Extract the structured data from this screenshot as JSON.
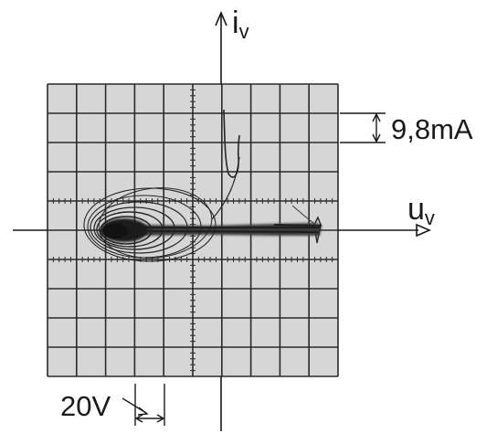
{
  "axes": {
    "y_label_main": "i",
    "y_label_sub": "v",
    "x_label_main": "u",
    "x_label_sub": "v"
  },
  "scale": {
    "vertical_per_div": "9,8mA",
    "horizontal_per_div": "20V"
  },
  "colors": {
    "screen_bg": "#d6d6d6",
    "grid": "#2a2a2a",
    "trace": "#262626",
    "ink": "#1a1a1a"
  }
}
